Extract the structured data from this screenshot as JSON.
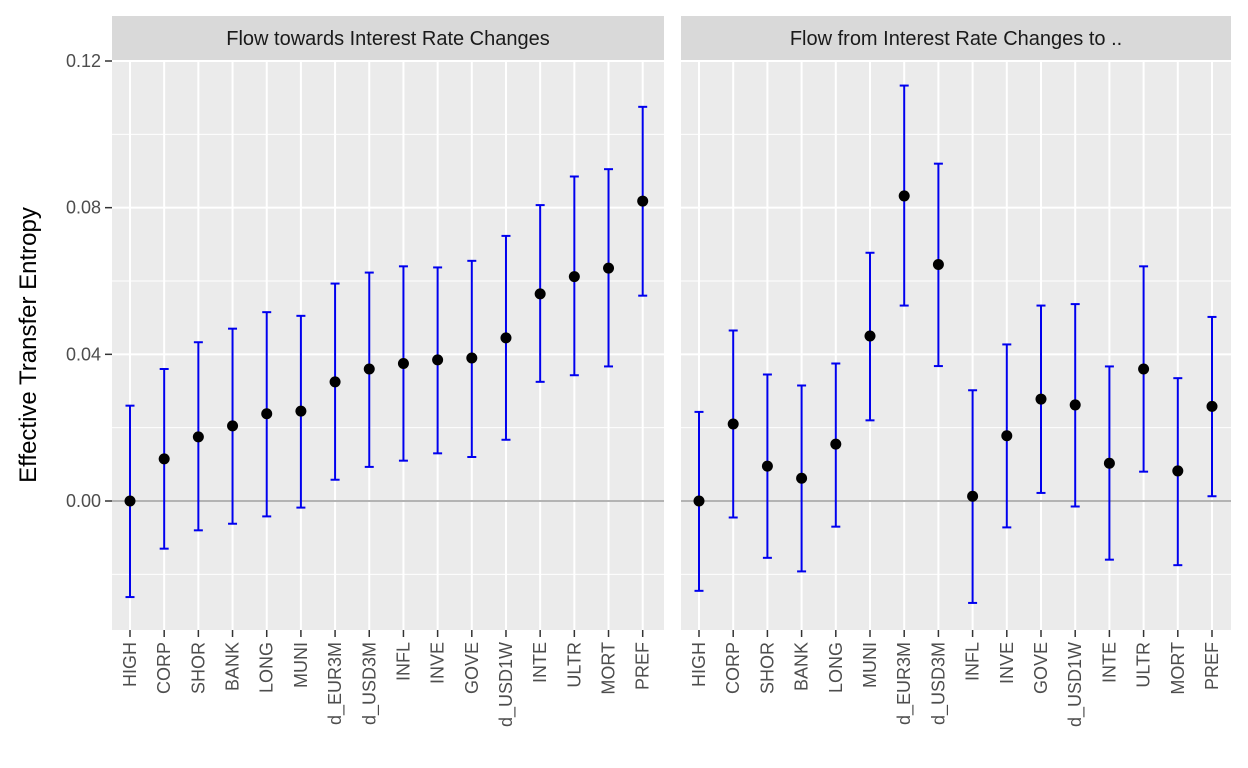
{
  "chart_data": {
    "type": "scatter",
    "subtype": "point-with-errorbars, faceted",
    "ylabel": "Effective Transfer Entropy",
    "xlabel": "",
    "ylim": [
      -0.035,
      0.12
    ],
    "yticks": [
      0.0,
      0.04,
      0.08,
      0.12
    ],
    "ytick_labels": [
      "0.00",
      "0.04",
      "0.08",
      "0.12"
    ],
    "reference_line_y": 0,
    "grid": true,
    "colors": {
      "panel_bg": "#ebebeb",
      "grid": "#ffffff",
      "strip_bg": "#d9d9d9",
      "errorbar": "#0000ee",
      "point": "#000000",
      "reference_line": "#b3b3b3"
    },
    "facets": [
      {
        "title": "Flow towards Interest Rate Changes",
        "categories": [
          "HIGH",
          "CORP",
          "SHOR",
          "BANK",
          "LONG",
          "MUNI",
          "d_EUR3M",
          "d_USD3M",
          "INFL",
          "INVE",
          "GOVE",
          "d_USD1W",
          "INTE",
          "ULTR",
          "MORT",
          "PREF"
        ],
        "values": [
          0.0,
          0.0115,
          0.0175,
          0.0205,
          0.0238,
          0.0245,
          0.0325,
          0.036,
          0.0375,
          0.0385,
          0.039,
          0.0445,
          0.0565,
          0.0612,
          0.0635,
          0.0818
        ],
        "lower": [
          -0.0262,
          -0.013,
          -0.008,
          -0.0062,
          -0.0042,
          -0.0018,
          0.0058,
          0.0093,
          0.011,
          0.013,
          0.012,
          0.0167,
          0.0325,
          0.0343,
          0.0367,
          0.056
        ],
        "upper": [
          0.026,
          0.036,
          0.0433,
          0.047,
          0.0515,
          0.0505,
          0.0593,
          0.0623,
          0.064,
          0.0637,
          0.0655,
          0.0723,
          0.0807,
          0.0885,
          0.0905,
          0.1075
        ]
      },
      {
        "title": "Flow from Interest Rate Changes to ..",
        "categories": [
          "HIGH",
          "CORP",
          "SHOR",
          "BANK",
          "LONG",
          "MUNI",
          "d_EUR3M",
          "d_USD3M",
          "INFL",
          "INVE",
          "GOVE",
          "d_USD1W",
          "INTE",
          "ULTR",
          "MORT",
          "PREF"
        ],
        "values": [
          0.0,
          0.021,
          0.0095,
          0.0062,
          0.0155,
          0.045,
          0.0832,
          0.0645,
          0.0013,
          0.0178,
          0.0278,
          0.0262,
          0.0103,
          0.036,
          0.0082,
          0.0258
        ],
        "lower": [
          -0.0245,
          -0.0045,
          -0.0155,
          -0.0192,
          -0.007,
          0.022,
          0.0533,
          0.0368,
          -0.0278,
          -0.0072,
          0.0022,
          -0.0015,
          -0.016,
          0.008,
          -0.0175,
          0.0013
        ],
        "upper": [
          0.0243,
          0.0465,
          0.0345,
          0.0315,
          0.0375,
          0.0677,
          0.1133,
          0.092,
          0.0302,
          0.0427,
          0.0533,
          0.0537,
          0.0367,
          0.064,
          0.0335,
          0.0502
        ]
      }
    ]
  }
}
